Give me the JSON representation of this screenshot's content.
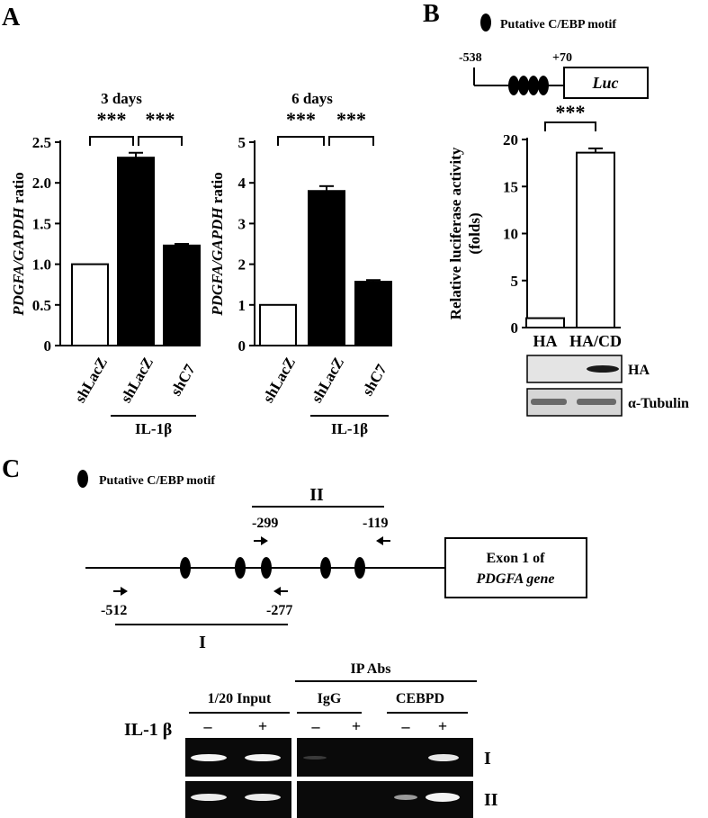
{
  "figure": {
    "panel_labels": [
      "A",
      "B",
      "C"
    ]
  },
  "motif_legend": "Putative C/EBP motif",
  "chart_data": [
    {
      "type": "bar",
      "title": "3 days",
      "ylabel_italic": "PDGFA/GAPDH",
      "ylabel_plain": " ratio",
      "categories": [
        "shLacZ",
        "shLacZ",
        "shC7"
      ],
      "values": [
        1.0,
        2.31,
        1.23
      ],
      "errors": [
        0.0,
        0.06,
        0.02
      ],
      "fills": [
        "#ffffff",
        "#000000",
        "#000000"
      ],
      "ylim": [
        0,
        2.5
      ],
      "yticks": [
        "0",
        "0.5",
        "1.0",
        "1.5",
        "2.0",
        "2.5"
      ],
      "treatment": "IL-1β",
      "significance": [
        "***",
        "***"
      ]
    },
    {
      "type": "bar",
      "title": "6 days",
      "ylabel_italic": "PDGFA/GAPDH",
      "ylabel_plain": " ratio",
      "categories": [
        "shLacZ",
        "shLacZ",
        "shC7"
      ],
      "values": [
        1.0,
        3.8,
        1.57
      ],
      "errors": [
        0.0,
        0.12,
        0.04
      ],
      "fills": [
        "#ffffff",
        "#000000",
        "#000000"
      ],
      "ylim": [
        0,
        5
      ],
      "yticks": [
        "0",
        "1",
        "2",
        "3",
        "4",
        "5"
      ],
      "treatment": "IL-1β",
      "significance": [
        "***",
        "***"
      ]
    },
    {
      "type": "bar",
      "title": "",
      "ylabel": [
        "Relative luciferase activity",
        "(folds)"
      ],
      "categories": [
        "HA",
        "HA/CD"
      ],
      "values": [
        1.0,
        18.6
      ],
      "errors": [
        0.0,
        0.45
      ],
      "fills": [
        "#ffffff",
        "#ffffff"
      ],
      "ylim": [
        0,
        20
      ],
      "yticks": [
        "0",
        "5",
        "10",
        "15",
        "20"
      ],
      "significance": [
        "***"
      ]
    }
  ],
  "panel_b": {
    "construct": {
      "start": "-538",
      "end": "+70",
      "reporter": "Luc"
    },
    "blot_labels": [
      "HA",
      "α-Tubulin"
    ]
  },
  "panel_c": {
    "amplicon_I": "I",
    "amplicon_II": "II",
    "primer_labels": [
      "-299",
      "-119",
      "-512",
      "-277"
    ],
    "exon_line1": "Exon 1 of",
    "exon_line2": "PDGFA gene",
    "ip_header": "IP Abs",
    "lane_groups": [
      "1/20 Input",
      "IgG",
      "CEBPD"
    ],
    "treatment_label": "IL-1 β",
    "treatment_signs": [
      "–",
      "+",
      "–",
      "+",
      "–",
      "+"
    ],
    "row_labels": [
      "I",
      "II"
    ]
  }
}
